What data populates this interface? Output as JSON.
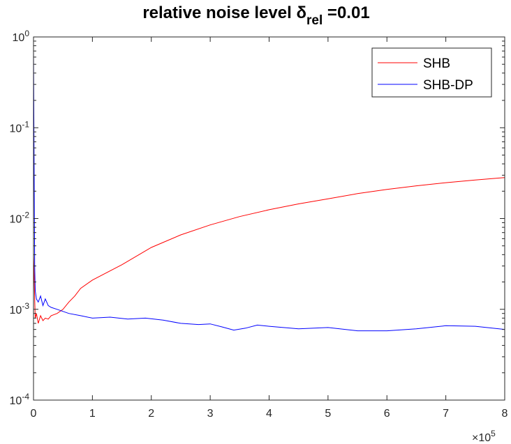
{
  "chart_data": {
    "type": "line",
    "title": "relative noise level δ",
    "title_subscript": "rel",
    "title_suffix": " =0.01",
    "xlabel": "",
    "ylabel": "",
    "x_multiplier": "×10",
    "x_multiplier_exp": "5",
    "xlim": [
      0,
      800000
    ],
    "ylim": [
      0.0001,
      1
    ],
    "y_scale": "log",
    "x_ticks": [
      0,
      100000,
      200000,
      300000,
      400000,
      500000,
      600000,
      700000,
      800000
    ],
    "x_tick_labels": [
      "0",
      "1",
      "2",
      "3",
      "4",
      "5",
      "6",
      "7",
      "8"
    ],
    "y_ticks": [
      0.0001,
      0.001,
      0.01,
      0.1,
      1
    ],
    "y_tick_base": "10",
    "y_tick_exps": [
      "-4",
      "-3",
      "-2",
      "-1",
      "0"
    ],
    "legend_position": "top-right",
    "grid": false,
    "series": [
      {
        "name": "SHB",
        "color": "#ff0000",
        "x": [
          0,
          1000,
          2000,
          3000,
          5000,
          8000,
          12000,
          16000,
          20000,
          25000,
          30000,
          40000,
          50000,
          60000,
          70000,
          80000,
          100000,
          150000,
          200000,
          250000,
          300000,
          350000,
          400000,
          450000,
          500000,
          550000,
          600000,
          650000,
          700000,
          750000,
          800000
        ],
        "y": [
          0.004,
          0.0025,
          0.0013,
          0.0008,
          0.0009,
          0.0007,
          0.00085,
          0.00075,
          0.0008,
          0.00078,
          0.00085,
          0.0009,
          0.001,
          0.0012,
          0.0014,
          0.0017,
          0.0021,
          0.0031,
          0.0048,
          0.0066,
          0.0085,
          0.0105,
          0.0125,
          0.0145,
          0.0165,
          0.0188,
          0.0209,
          0.0229,
          0.0248,
          0.0266,
          0.0283
        ]
      },
      {
        "name": "SHB-DP",
        "color": "#0000ff",
        "x": [
          0,
          1000,
          2000,
          3000,
          5000,
          8000,
          12000,
          16000,
          20000,
          25000,
          30000,
          40000,
          60000,
          80000,
          100000,
          130000,
          160000,
          190000,
          220000,
          250000,
          280000,
          300000,
          320000,
          340000,
          360000,
          380000,
          400000,
          450000,
          500000,
          550000,
          600000,
          650000,
          700000,
          750000,
          800000
        ],
        "y": [
          0.7,
          0.05,
          0.003,
          0.0016,
          0.0013,
          0.0012,
          0.0014,
          0.0011,
          0.0013,
          0.0011,
          0.00105,
          0.001,
          0.0009,
          0.00085,
          0.0008,
          0.00082,
          0.00078,
          0.0008,
          0.00076,
          0.0007,
          0.00068,
          0.00069,
          0.00064,
          0.00059,
          0.00062,
          0.00067,
          0.00065,
          0.00061,
          0.00063,
          0.00058,
          0.00058,
          0.00061,
          0.00066,
          0.00065,
          0.0006
        ]
      }
    ]
  }
}
